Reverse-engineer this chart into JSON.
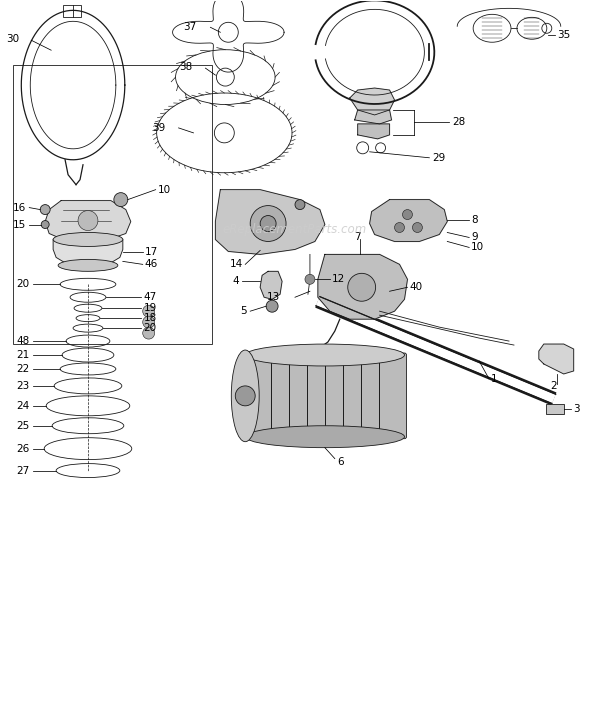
{
  "bg_color": "#ffffff",
  "lc": "#1a1a1a",
  "watermark": "eReplacementParts.com",
  "figsize": [
    5.9,
    7.19
  ],
  "dpi": 100
}
